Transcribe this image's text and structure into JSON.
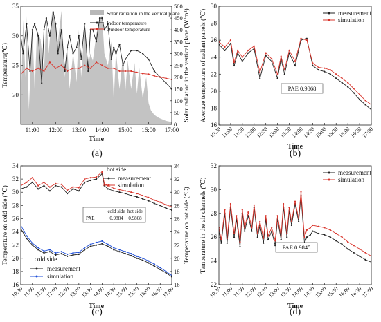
{
  "chart_data": [
    {
      "panel": "(a)",
      "type": "line",
      "xlabel": "Time",
      "ylabel": "Temperature(℃)",
      "ylabel_right": "Solar radiation in the vertical plane (W/m²)",
      "xticks": [
        "11:00",
        "12:00",
        "13:00",
        "14:00",
        "15:00",
        "16:00",
        "17:00"
      ],
      "xlim": [
        10.5,
        17.0
      ],
      "ylim": [
        15,
        35
      ],
      "yticks": [
        20,
        25,
        30,
        35
      ],
      "ylim_right": [
        0,
        500
      ],
      "yticks_right": [
        0,
        50,
        100,
        150,
        200,
        250,
        300,
        350,
        400,
        450,
        500
      ],
      "series": [
        {
          "name": "Solar radiation in the vertical plane",
          "color": "#b8b8b8",
          "x": [
            10.5,
            10.6,
            10.7,
            10.75,
            10.85,
            11.0,
            11.1,
            11.2,
            11.35,
            11.5,
            11.6,
            11.7,
            11.85,
            12.0,
            12.1,
            12.25,
            12.4,
            12.5,
            12.6,
            12.75,
            12.9,
            13.0,
            13.1,
            13.25,
            13.4,
            13.5,
            13.6,
            13.75,
            13.9,
            14.0,
            14.1,
            14.25,
            14.4,
            14.5,
            14.6,
            14.75,
            14.9,
            15.0,
            15.1,
            15.25,
            15.4,
            15.5,
            15.6,
            15.75,
            15.9,
            16.0,
            16.1,
            16.25,
            16.4,
            16.5,
            16.75,
            17.0
          ],
          "values": [
            70,
            440,
            200,
            460,
            60,
            420,
            140,
            400,
            360,
            220,
            460,
            300,
            480,
            430,
            350,
            480,
            200,
            330,
            150,
            300,
            180,
            400,
            200,
            420,
            250,
            300,
            270,
            380,
            450,
            460,
            300,
            250,
            350,
            100,
            310,
            150,
            290,
            140,
            270,
            150,
            260,
            130,
            240,
            110,
            200,
            90,
            60,
            40,
            30,
            25,
            15,
            10
          ]
        },
        {
          "name": "Indoor temperature",
          "color": "#222222",
          "x": [
            10.5,
            10.6,
            10.75,
            10.9,
            11.0,
            11.1,
            11.25,
            11.4,
            11.5,
            11.6,
            11.75,
            11.9,
            12.0,
            12.1,
            12.25,
            12.4,
            12.5,
            12.6,
            12.75,
            12.9,
            13.0,
            13.1,
            13.25,
            13.4,
            13.5,
            13.6,
            13.75,
            13.9,
            14.0,
            14.1,
            14.25,
            14.4,
            14.5,
            14.6,
            14.75,
            14.9,
            15.0,
            15.25,
            15.5,
            15.75,
            16.0,
            16.25,
            16.5,
            16.75,
            17.0
          ],
          "values": [
            30,
            27,
            32,
            24,
            31,
            32,
            30,
            22,
            31,
            33,
            30,
            34,
            32,
            27,
            31,
            24,
            28,
            30,
            27,
            28,
            30,
            26,
            32,
            24,
            31,
            31,
            29,
            33,
            33,
            31,
            32,
            26,
            28,
            27,
            28.5,
            25,
            26,
            27.5,
            27.5,
            27,
            26,
            24,
            23,
            22,
            21
          ]
        },
        {
          "name": "Outdoor temperature",
          "color": "#d9342b",
          "x": [
            10.5,
            10.75,
            11.0,
            11.25,
            11.5,
            11.75,
            12.0,
            12.25,
            12.5,
            12.75,
            13.0,
            13.25,
            13.5,
            13.75,
            14.0,
            14.25,
            14.5,
            14.75,
            15.0,
            15.25,
            15.5,
            15.75,
            16.0,
            16.25,
            16.5,
            16.75,
            17.0
          ],
          "values": [
            23.5,
            24.5,
            24.0,
            24.5,
            24.0,
            25.5,
            24.5,
            25.0,
            24.0,
            24.5,
            24.5,
            25.0,
            24.5,
            25.5,
            25.0,
            24.5,
            24.5,
            24.0,
            24.0,
            24.0,
            23.8,
            23.6,
            23.5,
            23.2,
            23.0,
            22.8,
            22.6
          ]
        }
      ]
    },
    {
      "panel": "(b)",
      "type": "line",
      "xlabel": "Time",
      "ylabel": "Average temperature of radiant panels (℃)",
      "xticks": [
        "10:30",
        "11:00",
        "11:30",
        "12:00",
        "12:30",
        "13:00",
        "13:30",
        "14:00",
        "14:30",
        "15:00",
        "15:30",
        "16:00",
        "16:30",
        "17:00"
      ],
      "ylim": [
        16,
        30
      ],
      "yticks": [
        16,
        18,
        20,
        22,
        24,
        26,
        28,
        30
      ],
      "annotation": "PAE  0.9868",
      "series": [
        {
          "name": "measurement",
          "color": "#222222",
          "x": [
            10.5,
            10.75,
            11.0,
            11.15,
            11.3,
            11.5,
            11.75,
            12.0,
            12.25,
            12.5,
            12.75,
            13.0,
            13.15,
            13.3,
            13.5,
            13.75,
            14.0,
            14.25,
            14.5,
            14.75,
            15.0,
            15.25,
            15.5,
            15.75,
            16.0,
            16.25,
            16.5,
            16.75,
            17.0
          ],
          "values": [
            25.5,
            24.8,
            25.6,
            23.0,
            24.5,
            23.5,
            24.5,
            25.0,
            21.5,
            24.2,
            23.5,
            21.5,
            23.8,
            22.0,
            24.5,
            23.0,
            26.0,
            26.2,
            23.0,
            22.5,
            22.3,
            22.0,
            21.5,
            21.0,
            20.5,
            19.8,
            19.0,
            18.4,
            17.8
          ]
        },
        {
          "name": "simulation",
          "color": "#d9342b",
          "x": [
            10.5,
            10.75,
            11.0,
            11.15,
            11.3,
            11.5,
            11.75,
            12.0,
            12.25,
            12.5,
            12.75,
            13.0,
            13.15,
            13.3,
            13.5,
            13.75,
            14.0,
            14.25,
            14.5,
            14.75,
            15.0,
            15.25,
            15.5,
            15.75,
            16.0,
            16.25,
            16.5,
            16.75,
            17.0
          ],
          "values": [
            25.8,
            25.2,
            26.0,
            23.4,
            24.8,
            24.0,
            24.8,
            25.3,
            22.2,
            24.5,
            23.8,
            22.0,
            24.1,
            22.5,
            24.8,
            23.5,
            26.2,
            26.0,
            23.3,
            22.8,
            22.7,
            22.5,
            22.0,
            21.5,
            21.0,
            20.3,
            19.6,
            18.9,
            18.4
          ]
        }
      ]
    },
    {
      "panel": "(c)",
      "type": "line",
      "xlabel": "Time",
      "ylabel": "Temperature on cold side (℃)",
      "ylabel_right": "Temperature on hot side (℃)",
      "xticks": [
        "10:30",
        "11:00",
        "11:30",
        "12:00",
        "12:30",
        "13:00",
        "13:30",
        "14:00",
        "14:30",
        "15:00",
        "15:30",
        "16:00",
        "16:30",
        "17:00"
      ],
      "ylim": [
        16,
        34
      ],
      "yticks": [
        16,
        18,
        20,
        22,
        24,
        26,
        28,
        30,
        32,
        34
      ],
      "ylim_right": [
        16,
        34
      ],
      "yticks_right": [
        16,
        18,
        20,
        22,
        24,
        26,
        28,
        30,
        32,
        34
      ],
      "annotations": [
        "hot side",
        "cold side"
      ],
      "pae_table": {
        "header": [
          "",
          "cold side",
          "hot side"
        ],
        "row": [
          "PAE",
          "0.9884",
          "0.9808"
        ]
      },
      "series": [
        {
          "name": "hot side measurement",
          "color": "#222222",
          "x": [
            10.5,
            10.75,
            11.0,
            11.25,
            11.5,
            11.75,
            12.0,
            12.25,
            12.5,
            12.75,
            13.0,
            13.25,
            13.5,
            13.75,
            14.0,
            14.1,
            14.25,
            14.5,
            14.75,
            15.0,
            15.25,
            15.5,
            15.75,
            16.0,
            16.25,
            16.5,
            16.75,
            17.0
          ],
          "values": [
            30.5,
            30.8,
            31.5,
            30.5,
            31.0,
            30.2,
            31.0,
            30.8,
            29.8,
            30.5,
            30.2,
            31.5,
            31.8,
            32.0,
            32.8,
            31.0,
            30.5,
            30.2,
            30.0,
            29.8,
            29.5,
            29.3,
            29.0,
            28.7,
            28.3,
            28.0,
            27.6,
            27.3
          ]
        },
        {
          "name": "hot side simulation",
          "color": "#d9342b",
          "x": [
            10.5,
            10.75,
            11.0,
            11.25,
            11.5,
            11.75,
            12.0,
            12.25,
            12.5,
            12.75,
            13.0,
            13.25,
            13.5,
            13.75,
            14.0,
            14.1,
            14.25,
            14.5,
            14.75,
            15.0,
            15.25,
            15.5,
            15.75,
            16.0,
            16.25,
            16.5,
            16.75,
            17.0
          ],
          "values": [
            31.0,
            31.5,
            32.2,
            31.0,
            31.5,
            30.8,
            31.3,
            31.2,
            30.3,
            30.8,
            30.7,
            32.0,
            32.2,
            32.3,
            33.1,
            31.3,
            31.0,
            30.6,
            30.4,
            30.2,
            30.0,
            29.8,
            29.5,
            29.2,
            28.8,
            28.5,
            28.1,
            27.8
          ]
        },
        {
          "name": "cold side measurement",
          "color": "#222222",
          "x": [
            10.5,
            10.75,
            11.0,
            11.25,
            11.5,
            11.75,
            12.0,
            12.25,
            12.5,
            12.75,
            13.0,
            13.25,
            13.5,
            13.75,
            14.0,
            14.25,
            14.5,
            14.75,
            15.0,
            15.25,
            15.5,
            15.75,
            16.0,
            16.25,
            16.5,
            16.75,
            17.0
          ],
          "values": [
            24.5,
            23.0,
            22.0,
            21.3,
            20.8,
            21.0,
            20.5,
            20.7,
            20.3,
            20.5,
            20.6,
            21.3,
            21.8,
            22.0,
            22.2,
            21.8,
            21.3,
            21.0,
            20.7,
            20.4,
            20.0,
            19.7,
            19.3,
            18.8,
            18.3,
            17.8,
            17.2
          ]
        },
        {
          "name": "cold side simulation",
          "color": "#1f4fd8",
          "x": [
            10.5,
            10.75,
            11.0,
            11.25,
            11.5,
            11.75,
            12.0,
            12.25,
            12.5,
            12.75,
            13.0,
            13.25,
            13.5,
            13.75,
            14.0,
            14.25,
            14.5,
            14.75,
            15.0,
            15.25,
            15.5,
            15.75,
            16.0,
            16.25,
            16.5,
            16.75,
            17.0
          ],
          "values": [
            25.0,
            23.4,
            22.3,
            21.6,
            21.1,
            21.3,
            20.8,
            21.0,
            20.6,
            20.8,
            20.9,
            21.6,
            22.1,
            22.4,
            22.6,
            22.1,
            21.6,
            21.3,
            21.0,
            20.7,
            20.3,
            20.0,
            19.6,
            19.1,
            18.6,
            18.0,
            17.4
          ]
        }
      ]
    },
    {
      "panel": "(d)",
      "type": "line",
      "xlabel": "Time",
      "ylabel": "Temperature in the air channels (℃)",
      "xticks": [
        "10:30",
        "11:00",
        "11:30",
        "12:00",
        "12:30",
        "13:00",
        "13:30",
        "14:00",
        "14:30",
        "15:00",
        "15:30",
        "16:00",
        "16:30",
        "17:00"
      ],
      "ylim": [
        22,
        32
      ],
      "yticks": [
        22,
        24,
        26,
        28,
        30,
        32
      ],
      "annotation": "PAE  0.9845",
      "series": [
        {
          "name": "measurement",
          "color": "#222222",
          "x": [
            10.5,
            10.6,
            10.75,
            10.85,
            11.0,
            11.15,
            11.25,
            11.4,
            11.5,
            11.6,
            11.75,
            11.9,
            12.0,
            12.15,
            12.25,
            12.4,
            12.5,
            12.6,
            12.75,
            12.9,
            13.0,
            13.15,
            13.25,
            13.4,
            13.5,
            13.6,
            13.75,
            13.9,
            14.0,
            14.15,
            14.25,
            14.4,
            14.5,
            14.75,
            15.0,
            15.25,
            15.5,
            15.75,
            16.0,
            16.25,
            16.5,
            16.75,
            17.0
          ],
          "values": [
            26.5,
            25.5,
            28.0,
            25.5,
            28.5,
            26.0,
            27.5,
            25.2,
            28.0,
            26.5,
            27.8,
            26.5,
            28.5,
            26.0,
            27.0,
            25.5,
            27.5,
            25.8,
            26.5,
            25.3,
            27.5,
            25.8,
            28.5,
            26.0,
            28.2,
            27.0,
            28.8,
            27.3,
            29.5,
            25.5,
            26.0,
            26.2,
            26.5,
            26.3,
            26.2,
            26.0,
            25.7,
            25.4,
            25.0,
            24.7,
            24.4,
            24.1,
            23.9
          ]
        },
        {
          "name": "simulation",
          "color": "#d9342b",
          "x": [
            10.5,
            10.6,
            10.75,
            10.85,
            11.0,
            11.15,
            11.25,
            11.4,
            11.5,
            11.6,
            11.75,
            11.9,
            12.0,
            12.15,
            12.25,
            12.4,
            12.5,
            12.6,
            12.75,
            12.9,
            13.0,
            13.15,
            13.25,
            13.4,
            13.5,
            13.6,
            13.75,
            13.9,
            14.0,
            14.15,
            14.25,
            14.4,
            14.5,
            14.75,
            15.0,
            15.25,
            15.5,
            15.75,
            16.0,
            16.25,
            16.5,
            16.75,
            17.0
          ],
          "values": [
            26.8,
            25.8,
            28.3,
            25.9,
            28.8,
            26.3,
            27.8,
            25.6,
            28.3,
            26.8,
            28.1,
            26.8,
            28.7,
            26.3,
            27.3,
            25.9,
            27.8,
            26.1,
            26.8,
            25.7,
            27.8,
            26.1,
            28.8,
            26.3,
            28.5,
            27.3,
            29.0,
            27.6,
            29.8,
            26.0,
            26.6,
            26.8,
            27.0,
            26.9,
            26.8,
            26.6,
            26.3,
            26.0,
            25.6,
            25.3,
            25.0,
            24.7,
            24.4
          ]
        }
      ]
    }
  ]
}
